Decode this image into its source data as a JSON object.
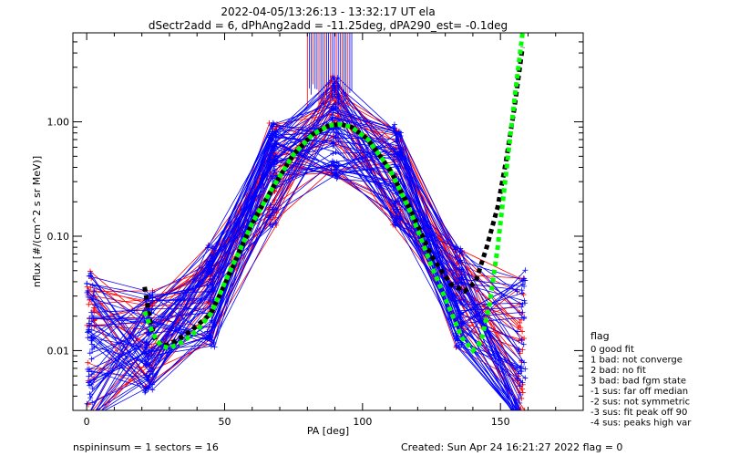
{
  "chart_data": {
    "type": "line",
    "title": "2022-04-05/13:26:13 - 13:32:17 UT ela",
    "subtitle": "dSectr2add = 6, dPhAng2add = -11.25deg, dPA290_est=  -0.1deg",
    "xlabel": "PA [deg]",
    "ylabel": "nflux [#/(cm^2 s sr MeV)]",
    "xlim": [
      -5,
      180
    ],
    "ylim": [
      0.003,
      6
    ],
    "yscale": "log",
    "grid": false,
    "x_ticks": [
      "0",
      "50",
      "100",
      "150"
    ],
    "y_ticks": [
      "0.01",
      "0.10",
      "1.00"
    ],
    "colors": {
      "good_fit": "#0000ff",
      "bad_fit": "#ff0000",
      "fit_black": "#000000",
      "fit_green": "#00ff00"
    },
    "series": [
      {
        "color": "#000000",
        "style": "dashed",
        "x": [
          21,
          23,
          25,
          28,
          32,
          38,
          45,
          52,
          60,
          68,
          75,
          82,
          88,
          92,
          96,
          102,
          110,
          118,
          125,
          132,
          137,
          141,
          145,
          149,
          152,
          155,
          158
        ],
        "y": [
          0.036,
          0.018,
          0.012,
          0.011,
          0.012,
          0.015,
          0.021,
          0.048,
          0.13,
          0.28,
          0.52,
          0.78,
          0.93,
          0.95,
          0.9,
          0.7,
          0.38,
          0.16,
          0.067,
          0.038,
          0.033,
          0.04,
          0.08,
          0.18,
          0.45,
          1.3,
          4.5
        ]
      },
      {
        "color": "#00ff00",
        "style": "dashed",
        "x": [
          21,
          24,
          27,
          30,
          35,
          40,
          45,
          52,
          60,
          68,
          75,
          82,
          88,
          92,
          96,
          102,
          110,
          118,
          125,
          132,
          136,
          140,
          143,
          146,
          149,
          152,
          155,
          158
        ],
        "y": [
          0.022,
          0.014,
          0.011,
          0.0105,
          0.012,
          0.015,
          0.021,
          0.05,
          0.13,
          0.28,
          0.52,
          0.78,
          0.93,
          0.95,
          0.9,
          0.7,
          0.38,
          0.15,
          0.055,
          0.022,
          0.013,
          0.01,
          0.012,
          0.025,
          0.08,
          0.35,
          1.5,
          6
        ]
      }
    ],
    "legend": {
      "position": "right",
      "title": "flag",
      "entries": [
        " 0 good fit",
        " 1 bad: not converge",
        " 2 bad: no fit",
        " 3 bad: bad fgm state",
        "-1 sus: far off median",
        "-2 sus: not symmetric",
        "-3 sus: fit peak off 90",
        "-4 sus: peaks high var"
      ]
    },
    "footer_left": "nspininsum =  1  sectors = 16",
    "footer_right": "Created: Sun Apr 24 16:21:27 2022   flag = 0"
  }
}
